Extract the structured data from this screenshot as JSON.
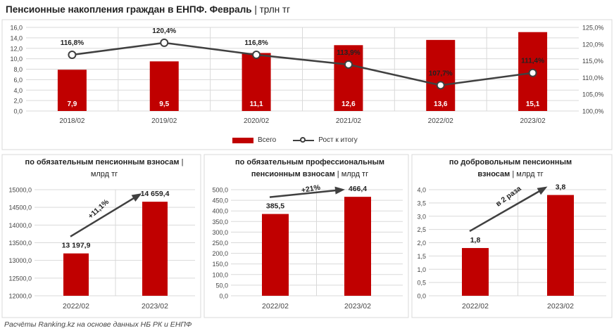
{
  "title": {
    "bold": "Пенсионные накопления граждан в ЕНПФ. Февраль",
    "sep": " | ",
    "unit": "трлн тг"
  },
  "footer": "Расчёты Ranking.kz на основе данных НБ РК и ЕНПФ",
  "legend": {
    "bars": "Всего",
    "line": "Рост к итогу"
  },
  "colors": {
    "bar": "#c00000",
    "line": "#404040",
    "grid": "#d9d9d9"
  },
  "chart_data": [
    {
      "type": "bar",
      "categories": [
        "2018/02",
        "2019/02",
        "2020/02",
        "2021/02",
        "2022/02",
        "2023/02"
      ],
      "series": [
        {
          "name": "Всего",
          "values": [
            7.9,
            9.5,
            11.1,
            12.6,
            13.6,
            15.1
          ],
          "labels": [
            "7,9",
            "9,5",
            "11,1",
            "12,6",
            "13,6",
            "15,1"
          ]
        },
        {
          "name": "Рост к итогу",
          "type": "line",
          "axis": "right",
          "values": [
            116.8,
            120.4,
            116.8,
            113.9,
            107.7,
            111.4
          ],
          "labels": [
            "116,8%",
            "120,4%",
            "116,8%",
            "113,9%",
            "107,7%",
            "111,4%"
          ]
        }
      ],
      "ylim": [
        0,
        16
      ],
      "yticks": [
        "0,0",
        "2,0",
        "4,0",
        "6,0",
        "8,0",
        "10,0",
        "12,0",
        "14,0",
        "16,0"
      ],
      "y2lim": [
        100,
        125
      ],
      "y2ticks": [
        "100,0%",
        "105,0%",
        "110,0%",
        "115,0%",
        "120,0%",
        "125,0%"
      ],
      "legend": "bottom"
    },
    {
      "type": "bar",
      "subtitle_bold": "по обязательным пенсионным взносам",
      "subtitle_unit": "млрд тг",
      "categories": [
        "2022/02",
        "2023/02"
      ],
      "values": [
        13197.9,
        14659.4
      ],
      "labels": [
        "13 197,9",
        "14 659,4"
      ],
      "ylim": [
        12000,
        15000
      ],
      "yticks": [
        "12000,0",
        "12500,0",
        "13000,0",
        "13500,0",
        "14000,0",
        "14500,0",
        "15000,0"
      ],
      "annotation": "+11,1%"
    },
    {
      "type": "bar",
      "subtitle_bold": "по обязательным профессиональным пенсионным взносам",
      "subtitle_unit": "млрд тг",
      "categories": [
        "2022/02",
        "2023/02"
      ],
      "values": [
        385.5,
        466.4
      ],
      "labels": [
        "385,5",
        "466,4"
      ],
      "ylim": [
        0,
        500
      ],
      "yticks": [
        "0,0",
        "50,0",
        "100,0",
        "150,0",
        "200,0",
        "250,0",
        "300,0",
        "350,0",
        "400,0",
        "450,0",
        "500,0"
      ],
      "annotation": "+21%"
    },
    {
      "type": "bar",
      "subtitle_bold": "по добровольным пенсионным взносам",
      "subtitle_unit": "млрд тг",
      "categories": [
        "2022/02",
        "2023/02"
      ],
      "values": [
        1.8,
        3.8
      ],
      "labels": [
        "1,8",
        "3,8"
      ],
      "ylim": [
        0,
        4
      ],
      "yticks": [
        "0,0",
        "0,5",
        "1,0",
        "1,5",
        "2,0",
        "2,5",
        "3,0",
        "3,5",
        "4,0"
      ],
      "annotation": "в 2 раза"
    }
  ]
}
